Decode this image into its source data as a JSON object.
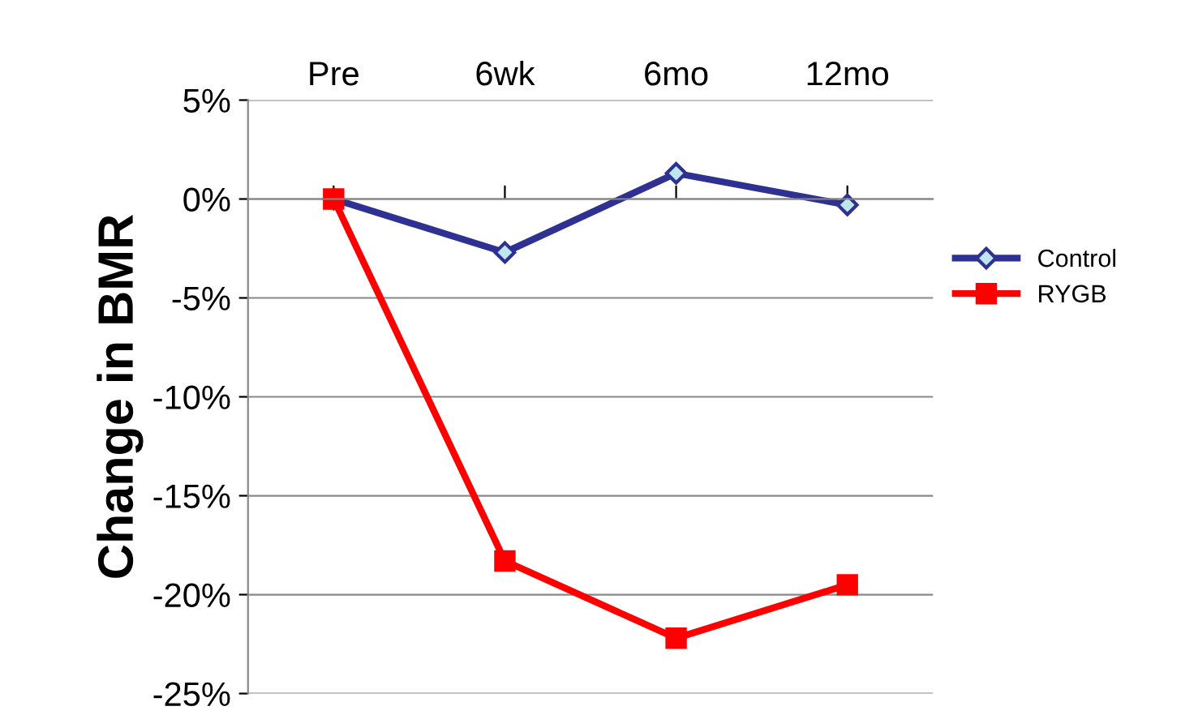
{
  "chart_data": {
    "type": "line",
    "ylabel": "Change in BMR",
    "categories": [
      "Pre",
      "6wk",
      "6mo",
      "12mo"
    ],
    "series": [
      {
        "name": "Control",
        "color": "#2e3192",
        "marker": "diamond",
        "values": [
          0,
          -2.7,
          1.3,
          -0.3
        ]
      },
      {
        "name": "RYGB",
        "color": "#ff0000",
        "marker": "square",
        "values": [
          0,
          -18.3,
          -22.2,
          -19.5
        ]
      }
    ],
    "ylim": [
      -25,
      5
    ],
    "yticks": [
      {
        "value": -25,
        "label": "-25%"
      },
      {
        "value": -20,
        "label": "-20%"
      },
      {
        "value": -15,
        "label": "-15%"
      },
      {
        "value": -10,
        "label": "-10%"
      },
      {
        "value": -5,
        "label": "-5%"
      },
      {
        "value": 0,
        "label": "0%"
      },
      {
        "value": 5,
        "label": "5%"
      }
    ],
    "grid": "y",
    "legend": "right"
  }
}
